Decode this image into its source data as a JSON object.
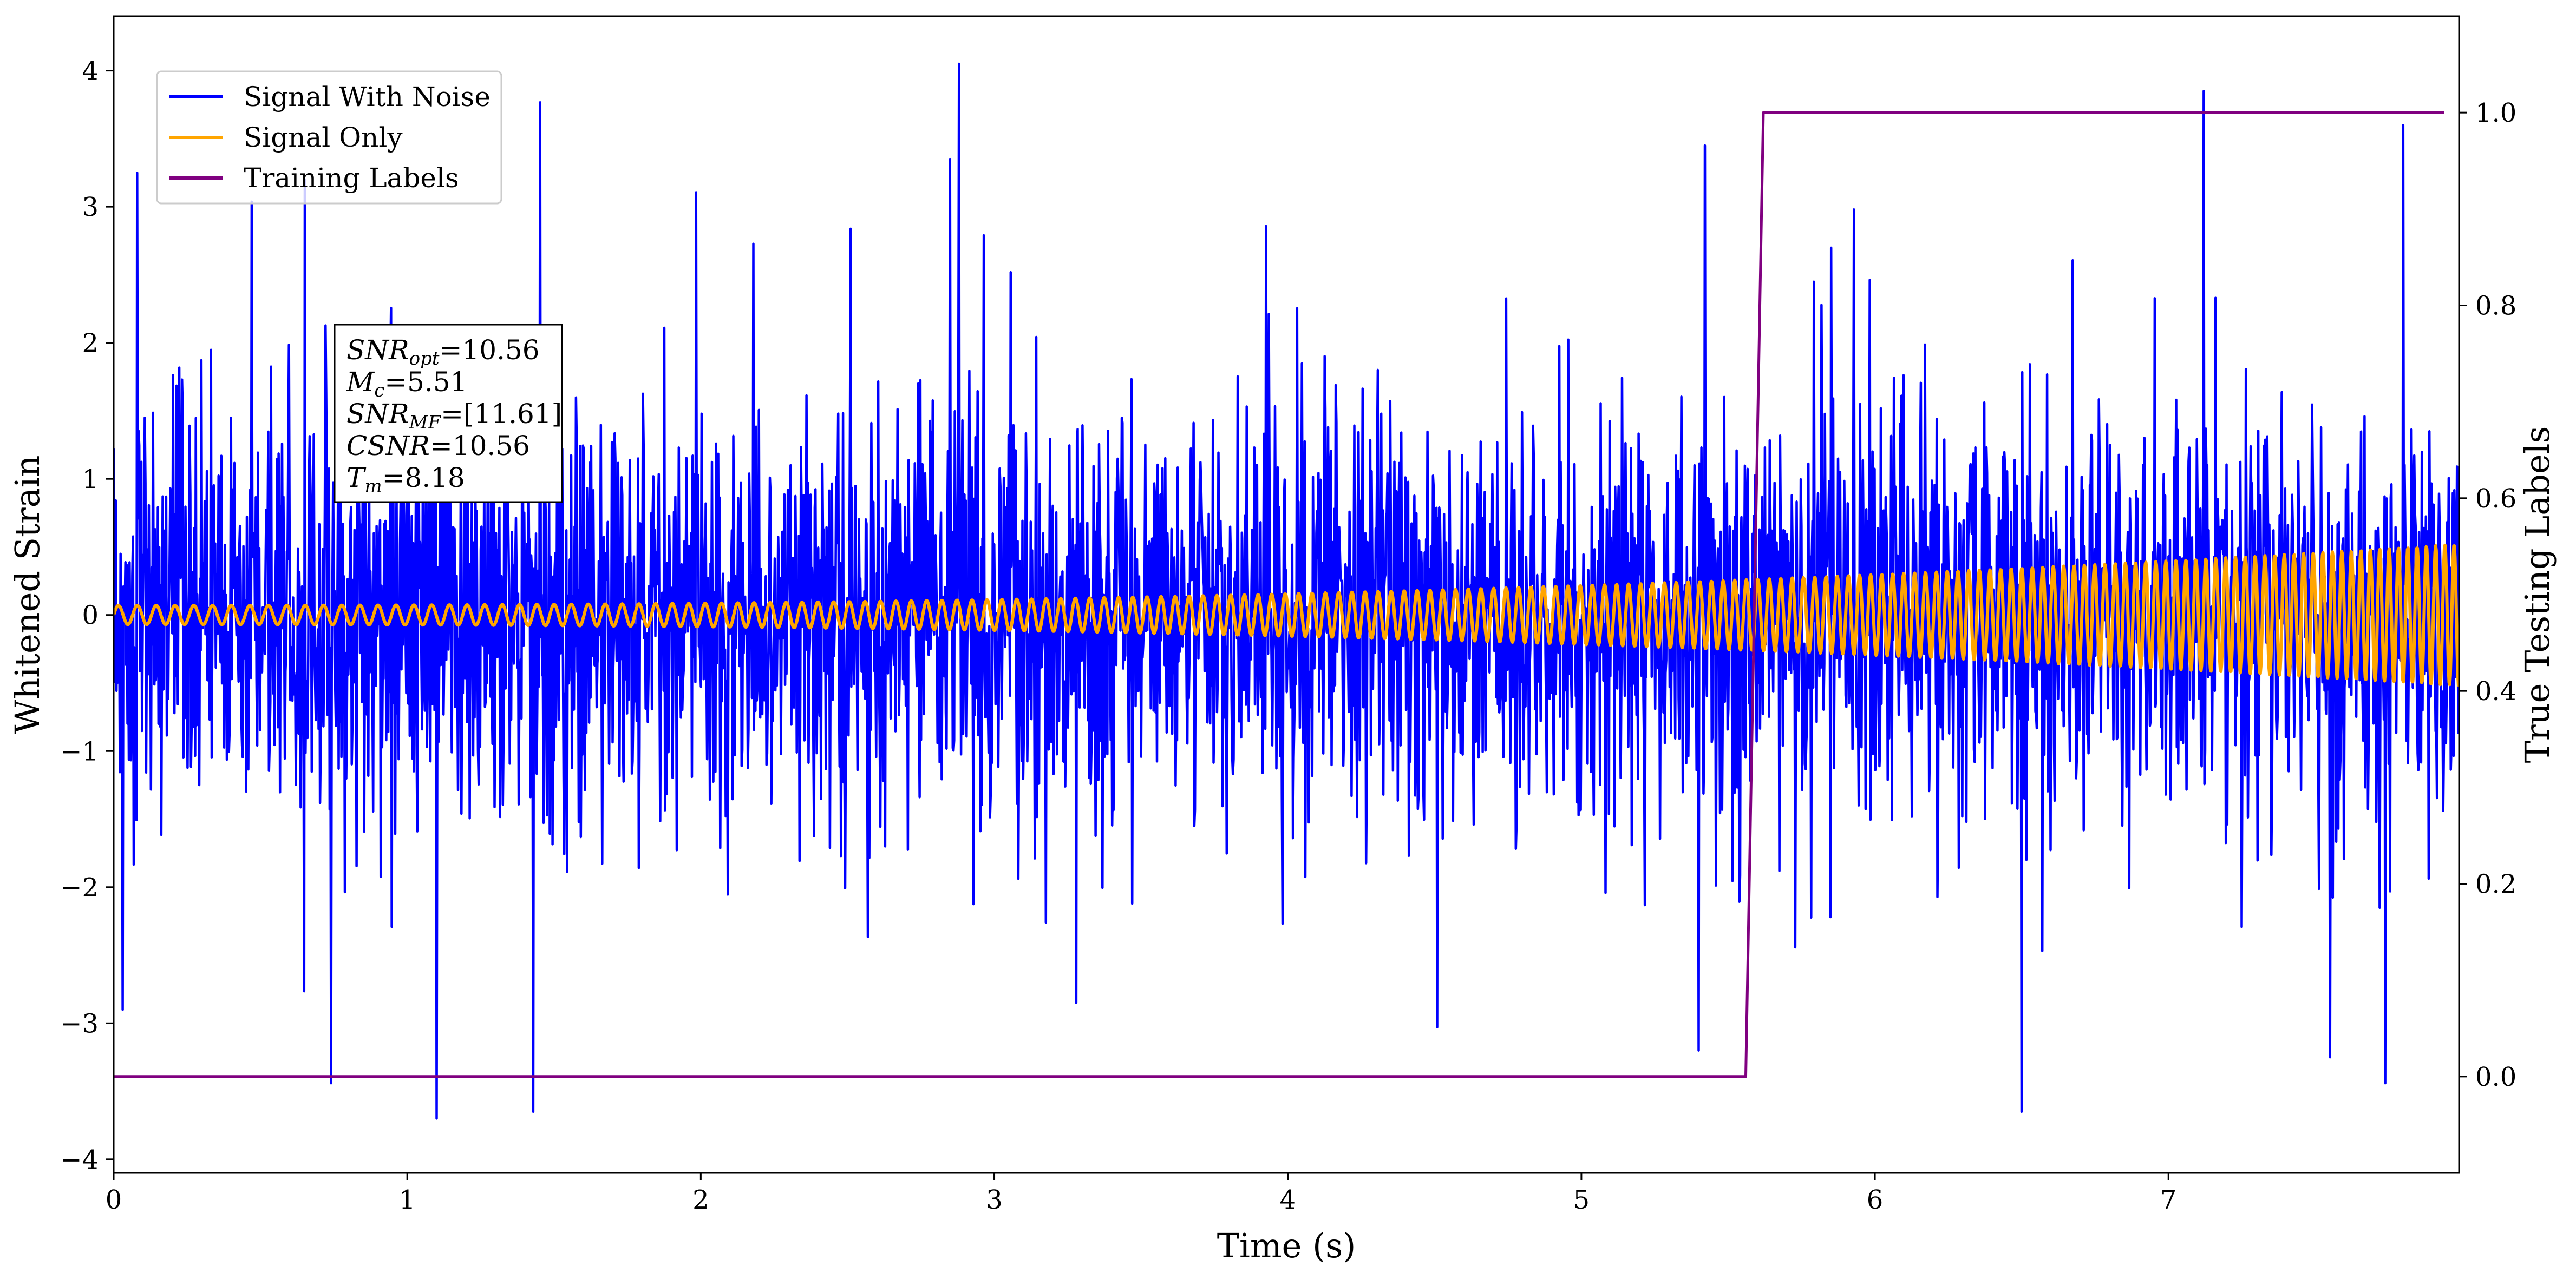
{
  "chart_data": {
    "type": "line",
    "x_label": "Time (s)",
    "y_label_left": "Whitened Strain",
    "y_label_right": "True Testing Labels",
    "xlim": [
      0,
      7.99
    ],
    "ylim_left": [
      -4.1,
      4.4
    ],
    "ylim_right": [
      -0.1,
      1.1
    ],
    "x_ticks": [
      0,
      1,
      2,
      3,
      4,
      5,
      6,
      7
    ],
    "x_tick_labels": [
      "0",
      "1",
      "2",
      "3",
      "4",
      "5",
      "6",
      "7"
    ],
    "y_ticks_left": [
      -4,
      -3,
      -2,
      -1,
      0,
      1,
      2,
      3,
      4
    ],
    "y_tick_labels_left": [
      "−4",
      "−3",
      "−2",
      "−1",
      "0",
      "1",
      "2",
      "3",
      "4"
    ],
    "y_ticks_right": [
      0.0,
      0.2,
      0.4,
      0.6,
      0.8,
      1.0
    ],
    "y_tick_labels_right": [
      "0.0",
      "0.2",
      "0.4",
      "0.6",
      "0.8",
      "1.0"
    ],
    "grid": false,
    "legend_position": "upper-left",
    "series": [
      {
        "name": "Signal With Noise",
        "color": "#0000ff",
        "axis": "left",
        "kind": "noise",
        "x_range": [
          0,
          7.99
        ],
        "approx_std": 0.75,
        "approx_min": -3.7,
        "approx_max": 4.05,
        "notable_peaks": [
          [
            0.08,
            3.25
          ],
          [
            0.65,
            3.2
          ],
          [
            2.85,
            3.35
          ],
          [
            2.88,
            4.05
          ],
          [
            5.42,
            3.45
          ],
          [
            7.12,
            3.85
          ],
          [
            7.8,
            3.6
          ]
        ],
        "notable_troughs": [
          [
            0.03,
            -2.9
          ],
          [
            1.1,
            -3.7
          ],
          [
            1.43,
            -3.65
          ],
          [
            5.4,
            -3.2
          ],
          [
            6.5,
            -3.65
          ],
          [
            7.55,
            -3.25
          ]
        ]
      },
      {
        "name": "Signal Only",
        "color": "#ffa500",
        "axis": "left",
        "kind": "chirp",
        "x_range": [
          0,
          7.99
        ],
        "amplitude_start": 0.07,
        "amplitude_end": 0.52,
        "frequency_start_hz": 15.5,
        "frequency_end_hz": 32
      },
      {
        "name": "Training Labels",
        "color": "#800080",
        "axis": "right",
        "kind": "step",
        "x": [
          0,
          5.56,
          5.62,
          7.94
        ],
        "y": [
          0,
          0,
          1,
          1
        ]
      }
    ],
    "annotation": {
      "lines": [
        {
          "sym": "SNR",
          "sub": "opt",
          "value": "=10.56"
        },
        {
          "sym": "M",
          "sub": "c",
          "value": "=5.51"
        },
        {
          "sym": "SNR",
          "sub": "MF",
          "value": "=[11.61]"
        },
        {
          "sym": "CSNR",
          "sub": "",
          "value": "=10.56"
        },
        {
          "sym": "T",
          "sub": "m",
          "value": "=8.18"
        }
      ]
    }
  }
}
